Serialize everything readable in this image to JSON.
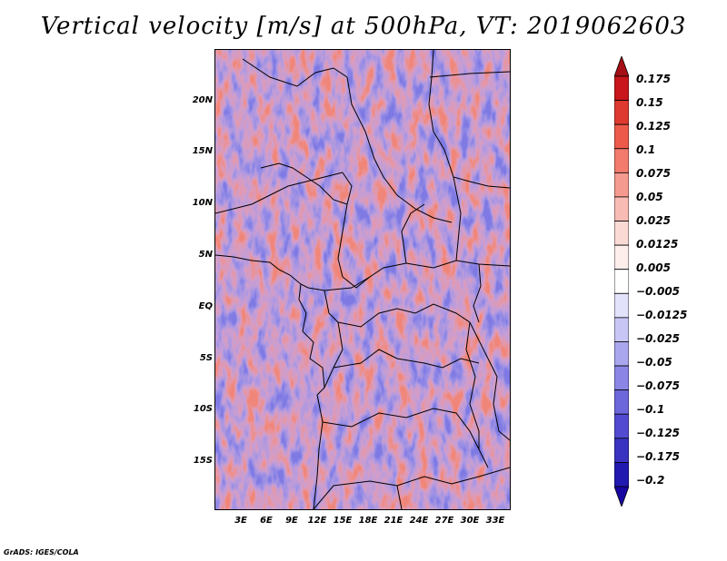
{
  "title": "Vertical velocity [m/s] at 500hPa, VT: 2019062603",
  "footer": "GrADS: IGES/COLA",
  "map": {
    "lat_labels": [
      "20N",
      "15N",
      "10N",
      "5N",
      "EQ",
      "5S",
      "10S",
      "15S"
    ],
    "lon_labels": [
      "3E",
      "6E",
      "9E",
      "12E",
      "15E",
      "18E",
      "21E",
      "24E",
      "27E",
      "30E",
      "33E"
    ],
    "lat_range": [
      -20,
      25
    ],
    "lon_range": [
      0,
      35
    ]
  },
  "colorbar": {
    "labels": [
      "0.175",
      "0.15",
      "0.125",
      "0.1",
      "0.075",
      "0.05",
      "0.025",
      "0.0125",
      "0.005",
      "−0.005",
      "−0.0125",
      "−0.025",
      "−0.05",
      "−0.075",
      "−0.1",
      "−0.125",
      "−0.175",
      "−0.2"
    ],
    "colors": [
      "#a50f15",
      "#c8161c",
      "#de3a2f",
      "#ee5a4a",
      "#f27b6e",
      "#f59a8f",
      "#f8bcb4",
      "#fbdad5",
      "#fdeeec",
      "#ffffff",
      "#e3e2fb",
      "#c8c6f5",
      "#aaa7ee",
      "#8b86e6",
      "#6d67dc",
      "#524bd1",
      "#3a33c2",
      "#2219b0",
      "#1706a0"
    ]
  }
}
